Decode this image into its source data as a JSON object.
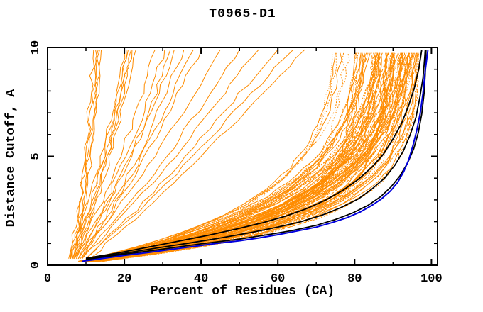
{
  "chart_data": {
    "type": "line",
    "title": "T0965-D1",
    "xlabel": "Percent of Residues (CA)",
    "ylabel": "Distance Cutoff, A",
    "xlim": [
      0,
      101.6
    ],
    "ylim": [
      0,
      10
    ],
    "x_major_ticks": [
      0,
      20,
      40,
      60,
      80,
      100
    ],
    "x_minor_ticks": [
      10,
      30,
      50,
      70,
      90
    ],
    "y_major_ticks": [
      0,
      5,
      10
    ],
    "y_minor_ticks": [
      1,
      2,
      3,
      4,
      6,
      7,
      8,
      9
    ],
    "grid": false,
    "legend": "none",
    "colors": {
      "cluster": "#ff8c00",
      "reference": "#000000",
      "highlight": "#0000dd",
      "axis": "#000000",
      "background": "#ffffff"
    },
    "series": {
      "blue_model": {
        "color_key": "highlight",
        "stroke_width": 2,
        "points": [
          [
            9,
            0.18
          ],
          [
            14,
            0.3
          ],
          [
            20,
            0.45
          ],
          [
            26,
            0.58
          ],
          [
            32,
            0.72
          ],
          [
            38,
            0.86
          ],
          [
            44,
            1.0
          ],
          [
            50,
            1.12
          ],
          [
            55,
            1.25
          ],
          [
            60,
            1.4
          ],
          [
            65,
            1.57
          ],
          [
            70,
            1.75
          ],
          [
            74,
            1.95
          ],
          [
            78,
            2.18
          ],
          [
            81.5,
            2.45
          ],
          [
            84.5,
            2.75
          ],
          [
            87,
            3.05
          ],
          [
            89.3,
            3.4
          ],
          [
            91.2,
            3.8
          ],
          [
            92.8,
            4.3
          ],
          [
            94.1,
            4.85
          ],
          [
            95.2,
            5.5
          ],
          [
            96.2,
            6.2
          ],
          [
            97.1,
            7.0
          ],
          [
            97.8,
            7.9
          ],
          [
            98.3,
            8.8
          ],
          [
            98.8,
            9.5
          ],
          [
            99.1,
            9.9
          ]
        ]
      },
      "black_models": [
        {
          "points": [
            [
              10,
              0.25
            ],
            [
              20,
              0.5
            ],
            [
              30,
              0.74
            ],
            [
              40,
              0.98
            ],
            [
              50,
              1.2
            ],
            [
              58,
              1.42
            ],
            [
              64,
              1.6
            ],
            [
              70,
              1.83
            ],
            [
              75,
              2.1
            ],
            [
              79.5,
              2.4
            ],
            [
              83.5,
              2.75
            ],
            [
              86.8,
              3.15
            ],
            [
              89.5,
              3.6
            ],
            [
              91.8,
              4.1
            ],
            [
              93.8,
              4.7
            ],
            [
              95.4,
              5.35
            ],
            [
              96.6,
              6.1
            ],
            [
              97.5,
              6.95
            ],
            [
              98.1,
              7.9
            ],
            [
              98.4,
              8.8
            ],
            [
              98.6,
              9.9
            ]
          ]
        },
        {
          "points": [
            [
              10,
              0.3
            ],
            [
              19,
              0.52
            ],
            [
              28,
              0.78
            ],
            [
              37,
              1.02
            ],
            [
              45,
              1.25
            ],
            [
              53,
              1.5
            ],
            [
              60,
              1.75
            ],
            [
              66,
              2.0
            ],
            [
              71.5,
              2.3
            ],
            [
              76.5,
              2.65
            ],
            [
              81,
              3.05
            ],
            [
              84.5,
              3.5
            ],
            [
              87.8,
              4.0
            ],
            [
              90.5,
              4.6
            ],
            [
              92.7,
              5.25
            ],
            [
              94.5,
              6.0
            ],
            [
              96,
              6.8
            ],
            [
              97,
              7.7
            ],
            [
              97.8,
              8.6
            ],
            [
              98.2,
              9.4
            ],
            [
              98.4,
              9.9
            ]
          ]
        },
        {
          "points": [
            [
              10,
              0.32
            ],
            [
              18,
              0.55
            ],
            [
              26,
              0.82
            ],
            [
              34,
              1.1
            ],
            [
              42,
              1.38
            ],
            [
              49,
              1.65
            ],
            [
              56,
              1.95
            ],
            [
              62,
              2.25
            ],
            [
              67.5,
              2.6
            ],
            [
              72.5,
              3.0
            ],
            [
              77,
              3.45
            ],
            [
              81,
              3.95
            ],
            [
              84.5,
              4.5
            ],
            [
              87.5,
              5.1
            ],
            [
              90,
              5.8
            ],
            [
              92.2,
              6.5
            ],
            [
              94,
              7.3
            ],
            [
              95.5,
              8.1
            ],
            [
              96.7,
              9.0
            ],
            [
              97.5,
              9.9
            ]
          ]
        }
      ],
      "orange_strays": {
        "color_key": "cluster",
        "anchor_cutoffs": [
          0.3,
          2.5,
          5,
          7.5,
          10
        ],
        "curves": [
          [
            6,
            8.5,
            10,
            11.5,
            12.5
          ],
          [
            6.5,
            9,
            10.8,
            12.3,
            13.2
          ],
          [
            5.5,
            8,
            9.8,
            11,
            12
          ],
          [
            7,
            9.5,
            11.5,
            13,
            14
          ],
          [
            6,
            8.8,
            10.5,
            12.2,
            13.6
          ],
          [
            6,
            10,
            14,
            17.5,
            20
          ],
          [
            6.5,
            11,
            15,
            18.5,
            21
          ],
          [
            7,
            11.5,
            15.5,
            19,
            22
          ],
          [
            6,
            10.5,
            14.5,
            18,
            20.5
          ],
          [
            7.5,
            12,
            16.5,
            20,
            23
          ],
          [
            6.8,
            11.2,
            15.8,
            19.2,
            21.8
          ],
          [
            7,
            13,
            19,
            24,
            28
          ],
          [
            7.5,
            14,
            20.5,
            26,
            30.5
          ],
          [
            8,
            15,
            22,
            28,
            33
          ],
          [
            7,
            14.5,
            21.5,
            27.5,
            32
          ],
          [
            8.5,
            16,
            23.5,
            30,
            35.5
          ],
          [
            8,
            16.5,
            24.5,
            31.5,
            38
          ],
          [
            9,
            17,
            25.5,
            33,
            40
          ],
          [
            8,
            18,
            28,
            37,
            45
          ],
          [
            9,
            20,
            31,
            41,
            50
          ],
          [
            9,
            21,
            33,
            44,
            55
          ],
          [
            10,
            23,
            36,
            48,
            60
          ],
          [
            10,
            24,
            38,
            51,
            64
          ],
          [
            11,
            25,
            40,
            54,
            67
          ]
        ]
      },
      "orange_cluster": {
        "color_key": "cluster",
        "generated": true,
        "seed": 7,
        "count": 95,
        "base_range": [
          3,
          7
        ],
        "amplitude_range": [
          70,
          93
        ],
        "tau_range": [
          1.6,
          3.1
        ],
        "max_pct_range": [
          95.2,
          97.4
        ],
        "cutoff_start": 0.18,
        "cutoff_end": 9.9
      }
    }
  }
}
